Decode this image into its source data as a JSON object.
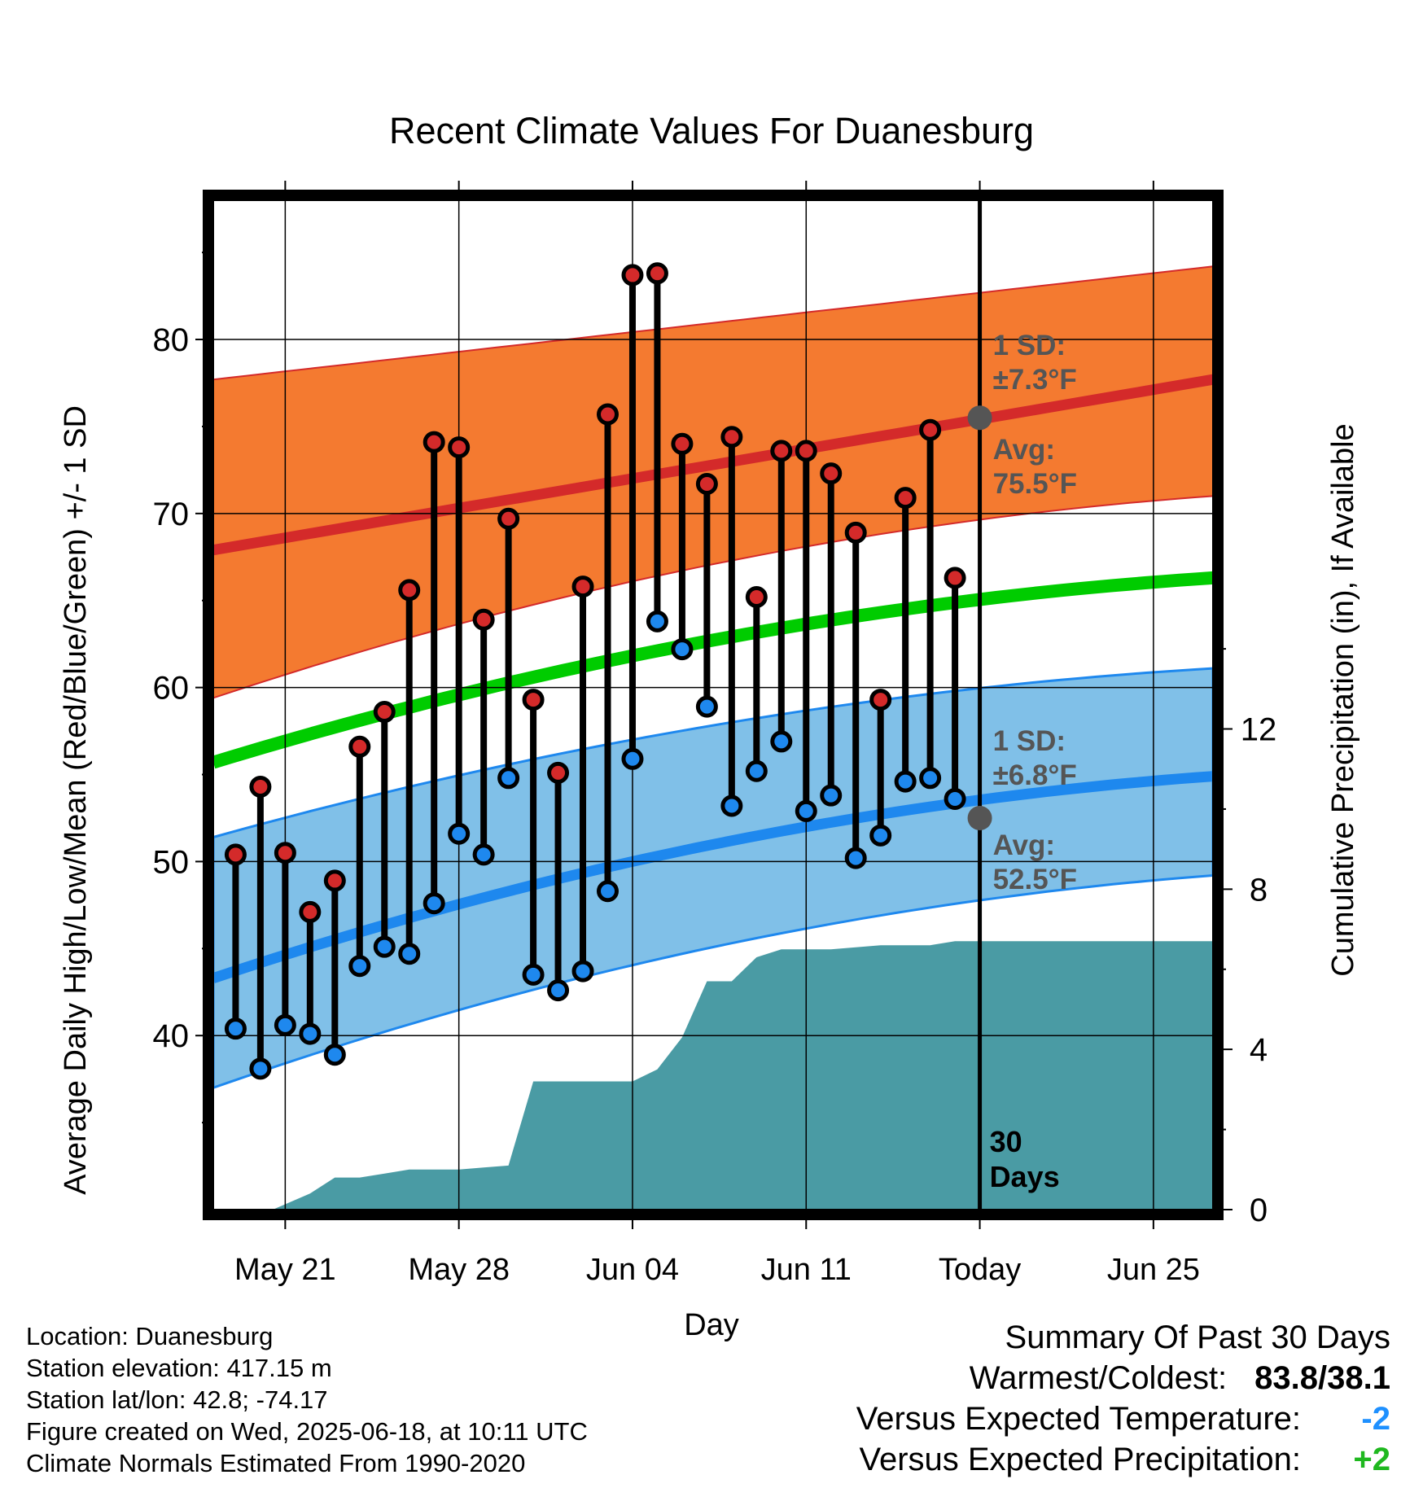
{
  "chart_data": {
    "type": "line",
    "title": "Recent Climate Values For Duanesburg",
    "xlabel": "Day",
    "ylabel": "Average Daily High/Low/Mean (Red/Blue/Green) +/- 1 SD",
    "y2label": "Cumulative Precipitation (in), If Available",
    "ylim": [
      30,
      88
    ],
    "y2lim": [
      0,
      25.2
    ],
    "x_ticks": [
      "May 21",
      "May 28",
      "Jun 04",
      "Jun 11",
      "Today",
      "Jun 25"
    ],
    "x_tick_days": [
      -28,
      -21,
      -14,
      -7,
      0,
      7
    ],
    "xlim": [
      -30.9,
      9.4
    ],
    "y_ticks": [
      "40",
      "50",
      "60",
      "70",
      "80"
    ],
    "y_tick_values": [
      40,
      50,
      60,
      70,
      80
    ],
    "y2_ticks": [
      "0",
      "4",
      "8",
      "12"
    ],
    "y2_tick_values": [
      0,
      4,
      8,
      12
    ],
    "grid": true,
    "days_window_label": [
      "30",
      "Days"
    ],
    "high_normal": {
      "avg_start": 67.9,
      "avg_end": 77.7,
      "sd_upper_start": 77.7,
      "sd_upper_end": 84.2,
      "sd_lower_start": 59.4,
      "sd_lower_end": 71.0,
      "label_sd": "1 SD:",
      "sd_value": "±7.3°F",
      "label_avg": "Avg:",
      "avg_value": "75.5°F",
      "today_avg": 75.5
    },
    "low_normal": {
      "avg_start": 43.3,
      "avg_end": 54.9,
      "sd_upper_start": 51.4,
      "sd_upper_end": 61.1,
      "sd_lower_start": 37.0,
      "sd_lower_end": 49.2,
      "label_sd": "1 SD:",
      "sd_value": "±6.8°F",
      "label_avg": "Avg:",
      "avg_value": "52.5°F",
      "today_avg": 52.5
    },
    "mean_normal": {
      "start": 55.7,
      "end": 66.3
    },
    "series": [
      {
        "name": "High",
        "x": [
          -30,
          -29,
          -28,
          -27,
          -26,
          -25,
          -24,
          -23,
          -22,
          -21,
          -20,
          -19,
          -18,
          -17,
          -16,
          -15,
          -14,
          -13,
          -12,
          -11,
          -10,
          -9,
          -8,
          -7,
          -6,
          -5,
          -4,
          -3,
          -2,
          -1
        ],
        "values": [
          50.4,
          54.3,
          50.5,
          47.1,
          48.9,
          56.6,
          58.6,
          65.6,
          74.1,
          73.8,
          63.9,
          69.7,
          59.3,
          55.1,
          65.8,
          75.7,
          83.7,
          83.8,
          74.0,
          71.7,
          74.4,
          65.2,
          73.6,
          73.6,
          72.3,
          68.9,
          59.3,
          70.9,
          74.8,
          66.3
        ]
      },
      {
        "name": "Low",
        "x": [
          -30,
          -29,
          -28,
          -27,
          -26,
          -25,
          -24,
          -23,
          -22,
          -21,
          -20,
          -19,
          -18,
          -17,
          -16,
          -15,
          -14,
          -13,
          -12,
          -11,
          -10,
          -9,
          -8,
          -7,
          -6,
          -5,
          -4,
          -3,
          -2,
          -1
        ],
        "values": [
          40.4,
          38.1,
          40.6,
          40.1,
          38.9,
          44.0,
          45.1,
          44.7,
          47.6,
          51.6,
          50.4,
          54.8,
          43.5,
          42.6,
          43.7,
          48.3,
          55.9,
          63.8,
          62.2,
          58.9,
          53.2,
          55.2,
          56.9,
          52.9,
          53.8,
          50.2,
          51.5,
          54.6,
          54.8,
          53.6
        ]
      }
    ],
    "precipitation": {
      "x": [
        -28.5,
        -27,
        -26,
        -25,
        -24,
        -23,
        -22,
        -21,
        -20,
        -19,
        -18,
        -17,
        -16,
        -15,
        -14,
        -13,
        -12,
        -11,
        -10,
        -9,
        -8,
        -7,
        -6,
        -5,
        -4,
        -3,
        -2,
        -1,
        0,
        9.4
      ],
      "values": [
        0,
        0.4,
        0.8,
        0.8,
        0.9,
        1.0,
        1.0,
        1.0,
        1.05,
        1.1,
        3.2,
        3.2,
        3.2,
        3.2,
        3.2,
        3.5,
        4.3,
        5.7,
        5.7,
        6.3,
        6.5,
        6.5,
        6.5,
        6.55,
        6.6,
        6.6,
        6.6,
        6.7,
        6.7,
        6.7
      ]
    }
  },
  "info": {
    "location": "Location: Duanesburg",
    "elevation": "Station elevation: 417.15 m",
    "latlon": "Station lat/lon: 42.8; -74.17",
    "created": "Figure created on Wed, 2025-06-18, at 10:11 UTC",
    "normals": "Climate Normals Estimated From 1990-2020"
  },
  "summary": {
    "title": "Summary Of Past 30 Days",
    "warm_cold_label": "Warmest/Coldest:",
    "warm_cold_value": "83.8/38.1",
    "temp_label": "Versus Expected Temperature:",
    "temp_value": "-2",
    "temp_color": "#1e90ff",
    "precip_label": "Versus Expected Precipitation:",
    "precip_value": "+2",
    "precip_color": "#1fb81f"
  },
  "colors": {
    "high_band": "#f47a30",
    "high_avg": "#d42a2a",
    "low_band": "#80c0e8",
    "low_avg": "#1e88ee",
    "mean": "#00cc00",
    "precip": "#4a9ba4",
    "high_dot": "#d42a2a",
    "low_dot": "#1e88ee",
    "today_marker": "#555555",
    "annotation_text": "#555555"
  }
}
